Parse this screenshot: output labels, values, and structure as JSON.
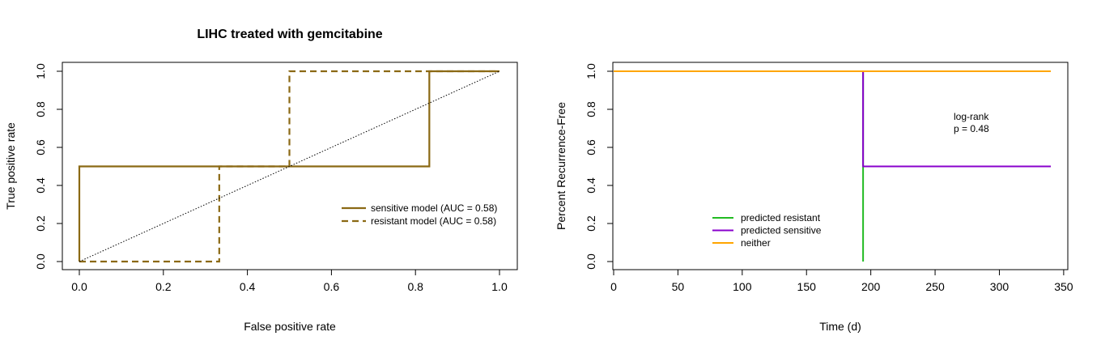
{
  "chart_data": [
    {
      "type": "line",
      "title": "LIHC treated with gemcitabine",
      "xlabel": "False positive rate",
      "ylabel": "True positive rate",
      "xlim": [
        0,
        1
      ],
      "ylim": [
        0,
        1
      ],
      "xticks": [
        "0.0",
        "0.2",
        "0.4",
        "0.6",
        "0.8",
        "1.0"
      ],
      "yticks": [
        "0.0",
        "0.2",
        "0.4",
        "0.6",
        "0.8",
        "1.0"
      ],
      "grid": false,
      "legend_position": "right",
      "series": [
        {
          "name": "sensitive model (AUC = 0.58)",
          "style": "solid",
          "color": "#8B6914",
          "x": [
            0,
            0,
            0.833,
            0.833,
            1
          ],
          "y": [
            0,
            0.5,
            0.5,
            1,
            1
          ]
        },
        {
          "name": "resistant model (AUC = 0.58)",
          "style": "dashed",
          "color": "#8B6914",
          "x": [
            0,
            0.333,
            0.333,
            0.5,
            0.5,
            1
          ],
          "y": [
            0,
            0,
            0.5,
            0.5,
            1,
            1
          ]
        },
        {
          "style": "dotted",
          "color": "#000000",
          "x": [
            0,
            1
          ],
          "y": [
            0,
            1
          ]
        }
      ]
    },
    {
      "type": "line",
      "title": "",
      "xlabel": "Time (d)",
      "ylabel": "Percent Recurrence-Free",
      "xlim": [
        0,
        340
      ],
      "ylim": [
        0,
        1
      ],
      "xticks": [
        "0",
        "50",
        "100",
        "150",
        "200",
        "250",
        "300",
        "350"
      ],
      "yticks": [
        "0.0",
        "0.2",
        "0.4",
        "0.6",
        "0.8",
        "1.0"
      ],
      "grid": false,
      "legend_position": "bottom-center",
      "annotation": [
        "log-rank",
        "p = 0.48"
      ],
      "series": [
        {
          "name": "predicted resistant",
          "color": "#22BB22",
          "x": [
            194,
            194
          ],
          "y": [
            1,
            0
          ]
        },
        {
          "name": "predicted sensitive",
          "color": "#8800CC",
          "x": [
            0,
            194,
            194,
            340
          ],
          "y": [
            1,
            1,
            0.5,
            0.5
          ]
        },
        {
          "name": "neither",
          "color": "#FFA500",
          "x": [
            0,
            340
          ],
          "y": [
            1,
            1
          ]
        }
      ]
    }
  ]
}
